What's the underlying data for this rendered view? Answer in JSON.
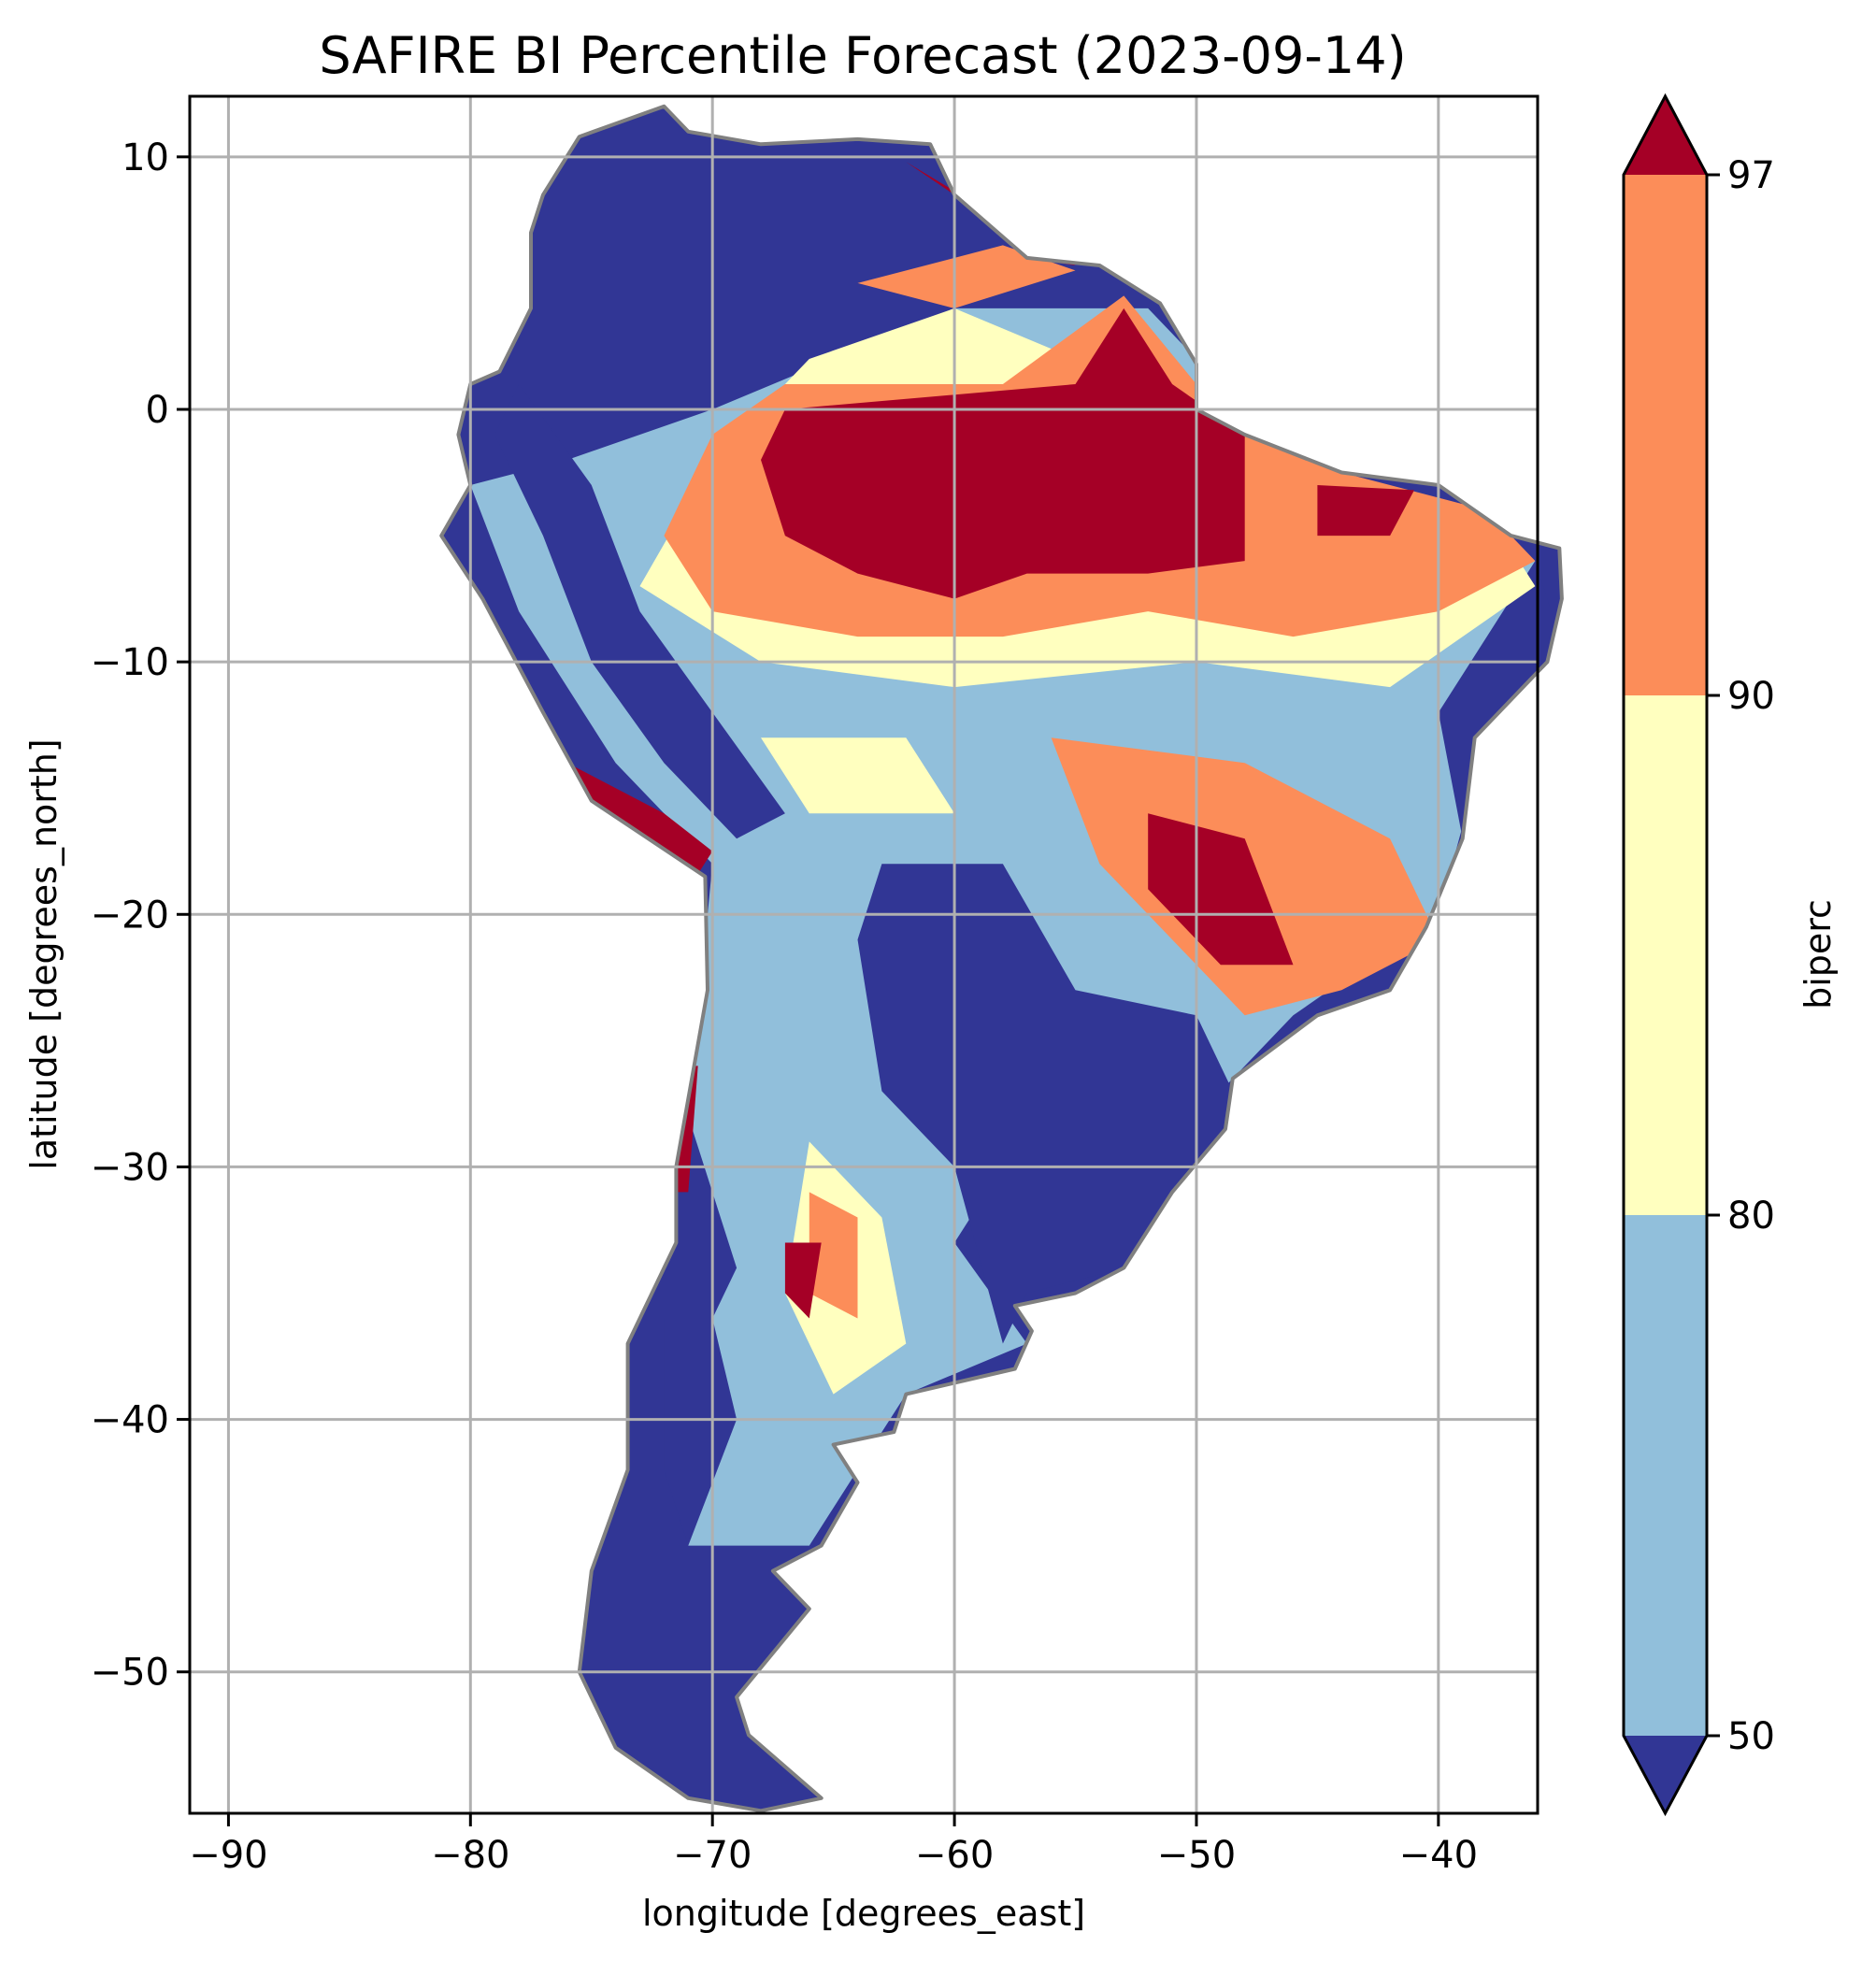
{
  "chart_data": {
    "type": "heatmap",
    "title": "SAFIRE BI Percentile Forecast (2023-09-14)",
    "xlabel": "longitude [degrees_east]",
    "ylabel": "latitude [degrees_north]",
    "xlim": [
      -91.6,
      -35.9
    ],
    "ylim": [
      -55.6,
      12.4
    ],
    "xticks": [
      -90,
      -80,
      -70,
      -60,
      -50,
      -40
    ],
    "xtick_labels": [
      "−90",
      "−80",
      "−70",
      "−60",
      "−50",
      "−40"
    ],
    "yticks": [
      10,
      0,
      -10,
      -20,
      -30,
      -40,
      -50
    ],
    "ytick_labels": [
      "10",
      "0",
      "−10",
      "−20",
      "−30",
      "−40",
      "−50"
    ],
    "grid": true,
    "region": "South America",
    "colorbar": {
      "label": "biperc",
      "boundaries": [
        50,
        80,
        90,
        97
      ],
      "tick_labels": [
        "50",
        "80",
        "90",
        "97"
      ],
      "extend": "both",
      "colors": {
        "below_50": "#313695",
        "50_80": "#91bfdb",
        "80_90": "#ffffbf",
        "90_97": "#fc8d59",
        "above_97": "#a50026"
      }
    },
    "border_color": "#808080",
    "grid_color": "#b0b0b0"
  }
}
